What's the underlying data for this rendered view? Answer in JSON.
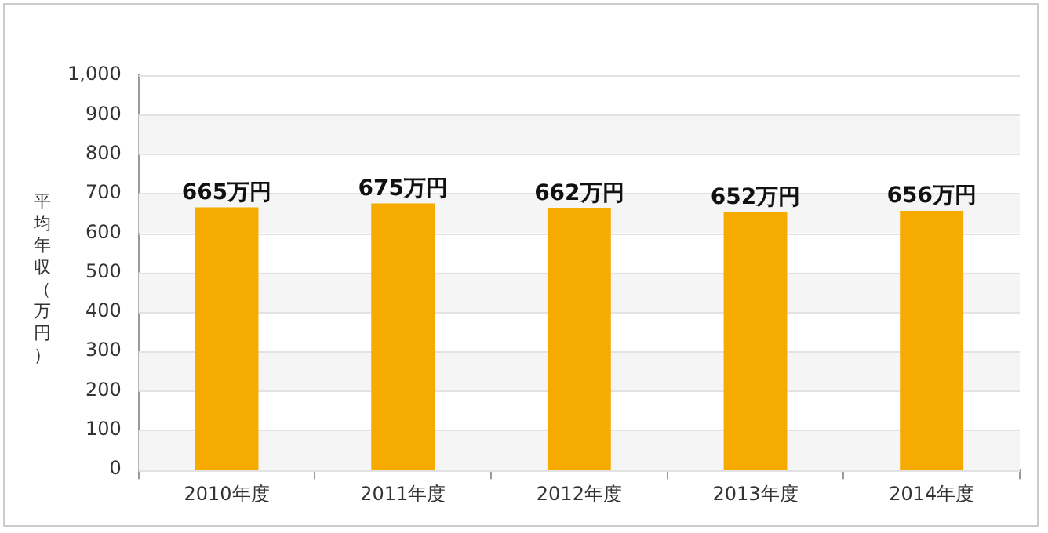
{
  "chart_data": {
    "type": "bar",
    "ylabel": "平均年収（万円）",
    "categories": [
      "2010年度",
      "2011年度",
      "2012年度",
      "2013年度",
      "2014年度"
    ],
    "values": [
      665,
      675,
      662,
      652,
      656
    ],
    "value_labels": [
      "665万円",
      "675万円",
      "662万円",
      "652万円",
      "656万円"
    ],
    "color": "#f6ab00",
    "ylim": [
      0,
      1000
    ],
    "yticks": [
      0,
      100,
      200,
      300,
      400,
      500,
      600,
      700,
      800,
      900,
      {
        "value": 1000,
        "label": "1,000"
      }
    ],
    "grid": "y"
  }
}
